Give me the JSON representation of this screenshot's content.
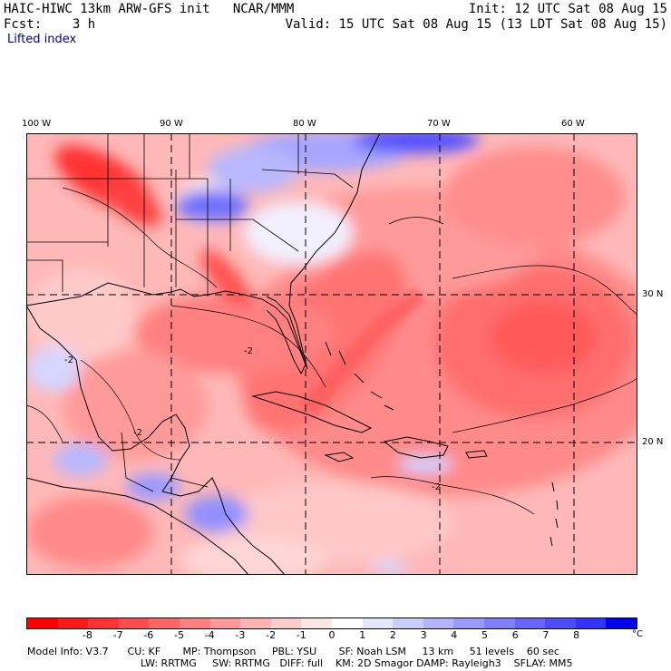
{
  "header": {
    "title_left": "HAIC-HIWC 13km ARW-GFS init   NCAR/MMM",
    "init": "Init: 12 UTC Sat 08 Aug 15",
    "fcst": "Fcst:    3 h",
    "valid": "Valid: 15 UTC Sat 08 Aug 15 (13 LDT Sat 08 Aug 15)",
    "field": "Lifted index"
  },
  "map": {
    "lon_labels": [
      "100 W",
      "90 W",
      "80 W",
      "70 W",
      "60 W"
    ],
    "lat_labels": [
      "30 N",
      "20 N"
    ],
    "contour_labels": [
      "-2",
      "-2",
      "-2",
      "-2"
    ]
  },
  "colorbar": {
    "ticks": [
      "-8",
      "-7",
      "-6",
      "-5",
      "-4",
      "-3",
      "-2",
      "-1",
      "0",
      "1",
      "2",
      "3",
      "4",
      "5",
      "6",
      "7",
      "8"
    ],
    "unit": "°C",
    "colors": [
      "#ff0000",
      "#ff1a1a",
      "#ff3333",
      "#ff4d4d",
      "#ff6666",
      "#ff8080",
      "#ff9999",
      "#ffb3b3",
      "#ffcccc",
      "#ffe6e6",
      "#ffffff",
      "#e6e6ff",
      "#ccccff",
      "#b3b3ff",
      "#9999ff",
      "#8080ff",
      "#6666ff",
      "#4d4dff",
      "#3333ff",
      "#0000ee"
    ]
  },
  "model_info": {
    "line1": "Model Info: V3.7      CU: KF       MP: Thompson     PBL: YSU       SF: Noah LSM     13 km     51 levels    60 sec",
    "line2": "LW: RRTMG     SW: RRTMG   DIFF: full    KM: 2D Smagor DAMP: Rayleigh3    SFLAY: MM5"
  }
}
